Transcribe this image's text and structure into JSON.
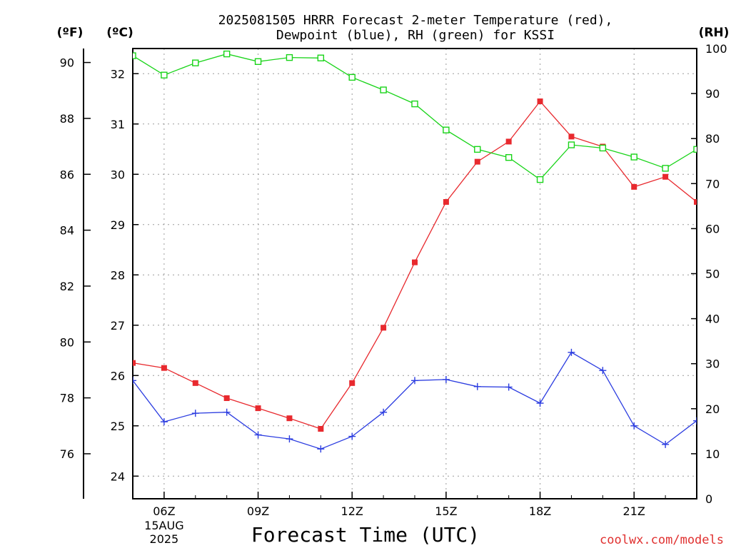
{
  "title": {
    "line1": "2025081505 HRRR Forecast 2-meter Temperature (red),",
    "line2": "Dewpoint (blue), RH (green) for KSSI"
  },
  "units": {
    "fahrenheit": "(ºF)",
    "celsius": "(ºC)",
    "rh": "(RH)"
  },
  "credit": "coolwx.com/models",
  "colors": {
    "temperature": "#e8292e",
    "dewpoint": "#2b3ce0",
    "rh": "#19d419",
    "grid": "#9a9a9a"
  },
  "chart_data": {
    "type": "line",
    "title": "2025081505 HRRR Forecast 2-meter Temperature (red), Dewpoint (blue), RH (green) for KSSI",
    "xlabel": "Forecast Time (UTC)",
    "x_hours": [
      5,
      6,
      7,
      8,
      9,
      10,
      11,
      12,
      13,
      14,
      15,
      16,
      17,
      18,
      19,
      20,
      21,
      22,
      23
    ],
    "x_ticks": [
      {
        "hour": 6,
        "label": "06Z",
        "sub": [
          "15AUG",
          "2025"
        ]
      },
      {
        "hour": 9,
        "label": "09Z"
      },
      {
        "hour": 12,
        "label": "12Z"
      },
      {
        "hour": 15,
        "label": "15Z"
      },
      {
        "hour": 18,
        "label": "18Z"
      },
      {
        "hour": 21,
        "label": "21Z"
      }
    ],
    "xlim": [
      5,
      23
    ],
    "axes": {
      "celsius": {
        "label": "(ºC)",
        "range": [
          23.55,
          32.5
        ],
        "ticks": [
          24,
          25,
          26,
          27,
          28,
          29,
          30,
          31,
          32
        ]
      },
      "fahrenheit": {
        "label": "(ºF)",
        "ticks": [
          76,
          78,
          80,
          82,
          84,
          86,
          88,
          90
        ]
      },
      "rh": {
        "label": "(RH)",
        "range": [
          0,
          100
        ],
        "ticks": [
          0,
          10,
          20,
          30,
          40,
          50,
          60,
          70,
          80,
          90,
          100
        ]
      }
    },
    "grid": true,
    "series": [
      {
        "name": "Temperature",
        "unit": "°C",
        "marker": "filled-square",
        "color": "#e8292e",
        "values": [
          26.25,
          26.15,
          25.85,
          25.55,
          25.35,
          25.15,
          24.94,
          25.85,
          26.95,
          28.25,
          29.45,
          30.25,
          30.65,
          31.45,
          30.75,
          30.55,
          29.75,
          29.95,
          29.45
        ]
      },
      {
        "name": "Dewpoint",
        "unit": "°C",
        "marker": "plus",
        "color": "#2b3ce0",
        "values": [
          25.9,
          25.08,
          25.25,
          25.27,
          24.82,
          24.74,
          24.54,
          24.79,
          25.27,
          25.9,
          25.92,
          25.78,
          25.77,
          25.45,
          26.46,
          26.1,
          25.0,
          24.63,
          25.1
        ]
      },
      {
        "name": "RH",
        "unit": "%",
        "marker": "open-square",
        "color": "#19d419",
        "values": [
          98.4,
          94.1,
          96.8,
          98.8,
          97.1,
          98.0,
          97.9,
          93.6,
          90.8,
          87.7,
          81.9,
          77.6,
          75.8,
          70.9,
          78.6,
          77.9,
          75.9,
          73.4,
          77.6
        ]
      }
    ]
  }
}
